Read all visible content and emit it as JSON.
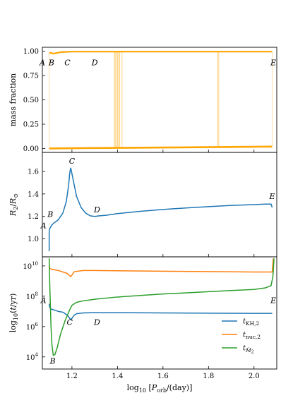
{
  "chart_data": [
    {
      "type": "line",
      "ylabel": "mass fraction",
      "ylim": [
        -0.04,
        1.04
      ],
      "yticks": [
        {
          "v": 0.0,
          "label": "0.00"
        },
        {
          "v": 0.25,
          "label": "0.25"
        },
        {
          "v": 0.5,
          "label": "0.50"
        },
        {
          "v": 0.75,
          "label": "0.75"
        },
        {
          "v": 1.0,
          "label": "1.00"
        }
      ],
      "series_color": "#ffa500",
      "series": [
        {
          "x": [
            1.1,
            1.12,
            1.15,
            1.2,
            1.3,
            1.38,
            1.4,
            1.42,
            1.6,
            1.84,
            1.85,
            2.0,
            2.08
          ],
          "y": [
            0.985,
            0.975,
            0.99,
            0.995,
            0.995,
            0.995,
            0.995,
            0.995,
            0.995,
            0.995,
            0.995,
            0.995,
            0.995
          ]
        },
        {
          "x": [
            1.1,
            1.2,
            1.3,
            1.4,
            1.6,
            1.8,
            2.0,
            2.08
          ],
          "y": [
            0.0,
            0.003,
            0.005,
            0.007,
            0.01,
            0.014,
            0.018,
            0.02
          ]
        }
      ],
      "spikes_x": [
        1.386,
        1.39,
        1.395,
        1.4,
        1.405,
        1.41,
        1.42,
        1.84,
        1.845
      ],
      "annotations": [
        {
          "text": "A",
          "x": 1.07,
          "y": 0.855
        },
        {
          "text": "B",
          "x": 1.11,
          "y": 0.855
        },
        {
          "text": "C",
          "x": 1.18,
          "y": 0.855
        },
        {
          "text": "D",
          "x": 1.3,
          "y": 0.855
        },
        {
          "text": "E",
          "x": 2.085,
          "y": 0.855
        }
      ]
    },
    {
      "type": "line",
      "ylabel": "R_2/R_⊙",
      "ylim": [
        0.84,
        1.77
      ],
      "yticks": [
        {
          "v": 1.0,
          "label": "1.0"
        },
        {
          "v": 1.2,
          "label": "1.2"
        },
        {
          "v": 1.4,
          "label": "1.4"
        },
        {
          "v": 1.6,
          "label": "1.6"
        }
      ],
      "series_color": "#1f77b4",
      "series": [
        {
          "x": [
            1.1,
            1.1,
            1.101,
            1.102,
            1.105,
            1.11,
            1.12,
            1.14,
            1.16,
            1.175,
            1.185,
            1.19,
            1.193,
            1.195,
            1.2,
            1.21,
            1.22,
            1.24,
            1.26,
            1.28,
            1.3,
            1.32,
            1.35,
            1.4,
            1.5,
            1.6,
            1.7,
            1.8,
            1.9,
            2.0,
            2.05,
            2.075,
            2.08
          ],
          "y": [
            0.89,
            1.05,
            1.08,
            1.09,
            1.1,
            1.12,
            1.14,
            1.17,
            1.23,
            1.33,
            1.47,
            1.58,
            1.62,
            1.63,
            1.58,
            1.48,
            1.38,
            1.28,
            1.23,
            1.205,
            1.2,
            1.205,
            1.21,
            1.225,
            1.245,
            1.262,
            1.275,
            1.287,
            1.298,
            1.305,
            1.31,
            1.31,
            1.28
          ]
        }
      ],
      "annotations": [
        {
          "text": "A",
          "x": 1.075,
          "y": 1.095
        },
        {
          "text": "B",
          "x": 1.105,
          "y": 1.195
        },
        {
          "text": "C",
          "x": 1.2,
          "y": 1.67
        },
        {
          "text": "D",
          "x": 1.31,
          "y": 1.235
        },
        {
          "text": "E",
          "x": 2.08,
          "y": 1.355
        }
      ]
    },
    {
      "type": "line",
      "xlabel": "log_10 [P_orb/(day)]",
      "ylabel": "log_10(t/yr)",
      "xlim": [
        1.07,
        2.1
      ],
      "xticks": [
        {
          "v": 1.2,
          "label": "1.2"
        },
        {
          "v": 1.4,
          "label": "1.4"
        },
        {
          "v": 1.6,
          "label": "1.6"
        },
        {
          "v": 1.8,
          "label": "1.8"
        },
        {
          "v": 2.0,
          "label": "2.0"
        }
      ],
      "ylim": [
        3.2,
        10.6
      ],
      "yticks": [
        {
          "v": 4,
          "label": "10",
          "exp": "4"
        },
        {
          "v": 6,
          "label": "10",
          "exp": "6"
        },
        {
          "v": 8,
          "label": "10",
          "exp": "8"
        },
        {
          "v": 10,
          "label": "10",
          "exp": "10"
        }
      ],
      "series": [
        {
          "name": "t_KH,2",
          "color": "#1f77b4",
          "x": [
            1.1,
            1.102,
            1.105,
            1.11,
            1.12,
            1.14,
            1.16,
            1.18,
            1.19,
            1.195,
            1.2,
            1.21,
            1.22,
            1.25,
            1.3,
            1.4,
            1.6,
            1.8,
            2.0,
            2.08
          ],
          "y": [
            7.5,
            7.3,
            7.2,
            7.15,
            7.1,
            7.0,
            6.95,
            6.75,
            6.55,
            6.45,
            6.55,
            6.75,
            6.85,
            6.9,
            6.92,
            6.92,
            6.9,
            6.88,
            6.87,
            6.87
          ]
        },
        {
          "name": "t_nuc,2",
          "color": "#ff7f0e",
          "x": [
            1.1,
            1.102,
            1.11,
            1.14,
            1.18,
            1.19,
            1.195,
            1.2,
            1.21,
            1.25,
            1.3,
            1.4,
            1.6,
            1.8,
            2.0,
            2.08,
            2.085
          ],
          "y": [
            10.1,
            9.85,
            9.78,
            9.7,
            9.5,
            9.35,
            9.3,
            9.4,
            9.62,
            9.7,
            9.7,
            9.68,
            9.65,
            9.63,
            9.6,
            9.6,
            10.5
          ]
        },
        {
          "name": "t_Ṁ2",
          "color": "#2ca02c",
          "x": [
            1.1,
            1.103,
            1.108,
            1.112,
            1.118,
            1.125,
            1.135,
            1.15,
            1.17,
            1.19,
            1.2,
            1.22,
            1.25,
            1.3,
            1.4,
            1.5,
            1.6,
            1.7,
            1.8,
            1.9,
            2.0,
            2.05,
            2.075,
            2.083,
            2.088
          ],
          "y": [
            10.5,
            8.5,
            6.0,
            4.8,
            4.1,
            4.15,
            4.6,
            5.5,
            6.4,
            7.1,
            7.4,
            7.6,
            7.7,
            7.8,
            7.95,
            8.05,
            8.15,
            8.22,
            8.3,
            8.38,
            8.45,
            8.55,
            8.7,
            9.3,
            10.5
          ]
        }
      ],
      "annotations": [
        {
          "text": "A",
          "x": 1.075,
          "y": 7.55
        },
        {
          "text": "B",
          "x": 1.115,
          "y": 3.55
        },
        {
          "text": "C",
          "x": 1.19,
          "y": 6.1
        },
        {
          "text": "D",
          "x": 1.31,
          "y": 6.1
        },
        {
          "text": "E",
          "x": 2.085,
          "y": 7.55
        }
      ],
      "legend": "lower-right"
    }
  ]
}
